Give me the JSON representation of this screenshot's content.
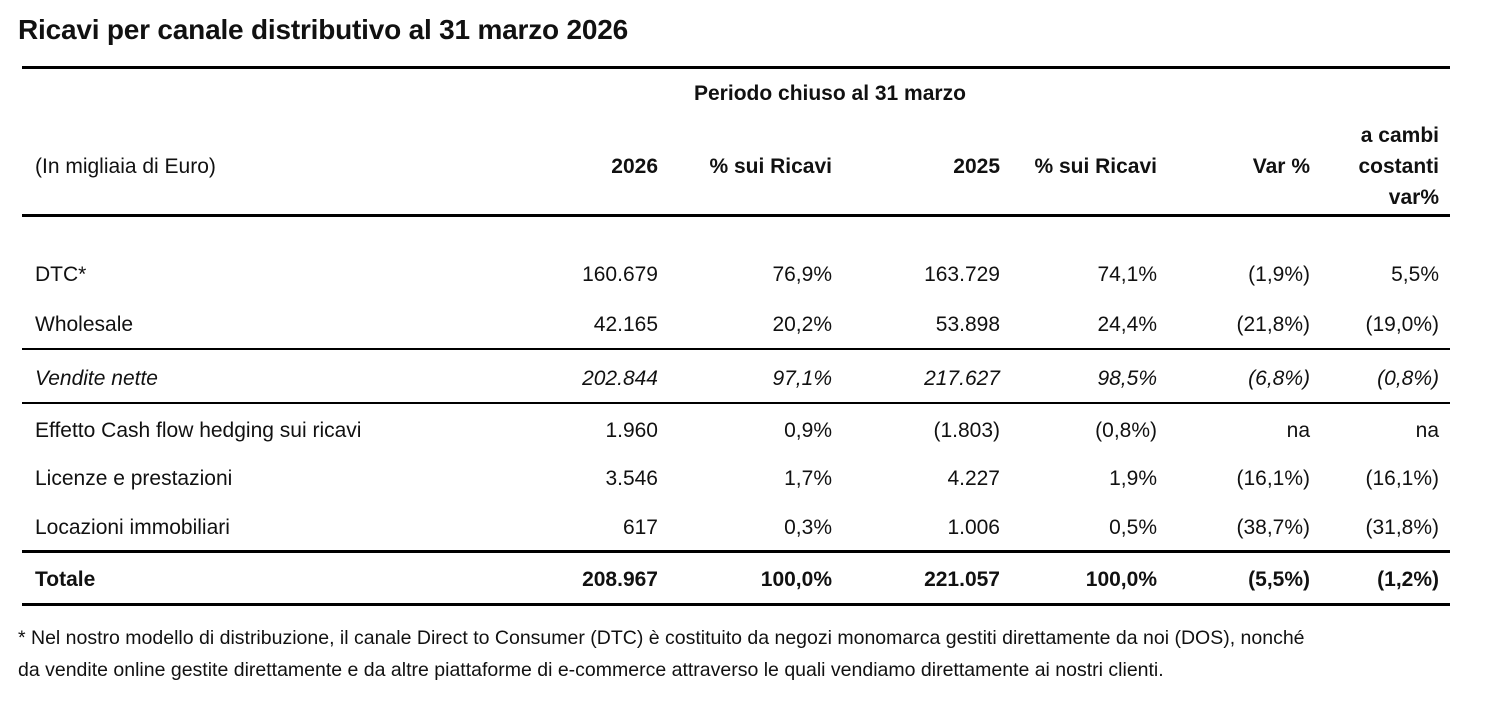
{
  "title": "Ricavi per canale distributivo al 31 marzo 2026",
  "header": {
    "period": "Periodo chiuso al 31 marzo",
    "unit": "(In migliaia di Euro)",
    "col_2026": "2026",
    "col_pct_2026": "% sui Ricavi",
    "col_2025": "2025",
    "col_pct_2025": "% sui Ricavi",
    "col_var": "Var %",
    "col_cambi": [
      "a cambi",
      "costanti",
      "var%"
    ]
  },
  "rows": [
    {
      "label": "DTC*",
      "v2026": "160.679",
      "p2026": "76,9%",
      "v2025": "163.729",
      "p2025": "74,1%",
      "var": "(1,9%)",
      "cambi": "5,5%"
    },
    {
      "label": "Wholesale",
      "v2026": "42.165",
      "p2026": "20,2%",
      "v2025": "53.898",
      "p2025": "24,4%",
      "var": "(21,8%)",
      "cambi": "(19,0%)"
    },
    {
      "label": "Vendite nette",
      "v2026": "202.844",
      "p2026": "97,1%",
      "v2025": "217.627",
      "p2025": "98,5%",
      "var": "(6,8%)",
      "cambi": "(0,8%)"
    },
    {
      "label": "Effetto Cash flow hedging sui ricavi",
      "v2026": "1.960",
      "p2026": "0,9%",
      "v2025": "(1.803)",
      "p2025": "(0,8%)",
      "var": "na",
      "cambi": "na"
    },
    {
      "label": "Licenze e prestazioni",
      "v2026": "3.546",
      "p2026": "1,7%",
      "v2025": "4.227",
      "p2025": "1,9%",
      "var": "(16,1%)",
      "cambi": "(16,1%)"
    },
    {
      "label": "Locazioni immobiliari",
      "v2026": "617",
      "p2026": "0,3%",
      "v2025": "1.006",
      "p2025": "0,5%",
      "var": "(38,7%)",
      "cambi": "(31,8%)"
    },
    {
      "label": "Totale",
      "v2026": "208.967",
      "p2026": "100,0%",
      "v2025": "221.057",
      "p2025": "100,0%",
      "var": "(5,5%)",
      "cambi": "(1,2%)"
    }
  ],
  "footnote": [
    "* Nel nostro modello di distribuzione, il canale Direct to Consumer (DTC) è costituito da negozi monomarca gestiti direttamente da noi (DOS), nonché",
    "da vendite online gestite direttamente e da altre piattaforme di e-commerce attraverso le quali vendiamo direttamente ai nostri clienti."
  ]
}
